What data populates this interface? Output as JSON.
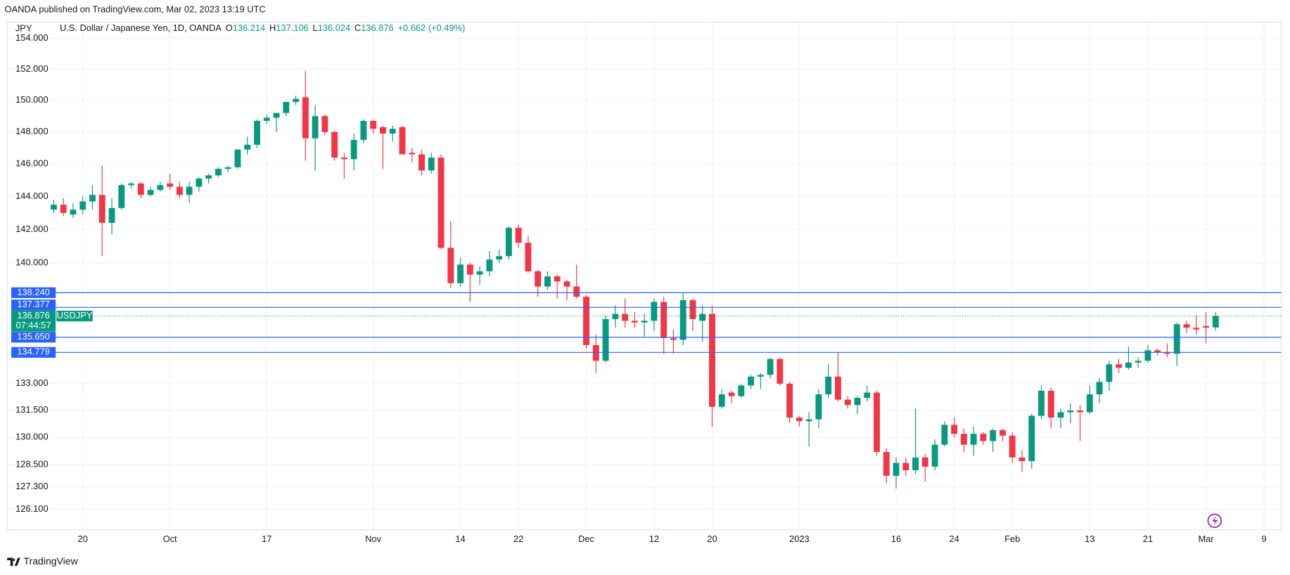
{
  "header": "OANDA published on TradingView.com, Mar 02, 2023 13:19 UTC",
  "footer_brand": "TradingView",
  "chart_data": {
    "type": "candlestick",
    "currency": "JPY",
    "title": "U.S. Dollar / Japanese Yen, 1D, OANDA",
    "ohlc_legend": [
      {
        "key": "O",
        "value": 136.214
      },
      {
        "key": "H",
        "value": 137.106
      },
      {
        "key": "L",
        "value": 136.024
      },
      {
        "key": "C",
        "value": 136.876
      }
    ],
    "change": "+0.662 (+0.49%)",
    "x": [
      "2022-09-15",
      "2022-09-16",
      "2022-09-19",
      "2022-09-20",
      "2022-09-21",
      "2022-09-22",
      "2022-09-23",
      "2022-09-26",
      "2022-09-27",
      "2022-09-28",
      "2022-09-29",
      "2022-09-30",
      "2022-10-03",
      "2022-10-04",
      "2022-10-05",
      "2022-10-06",
      "2022-10-07",
      "2022-10-10",
      "2022-10-11",
      "2022-10-12",
      "2022-10-13",
      "2022-10-14",
      "2022-10-17",
      "2022-10-18",
      "2022-10-19",
      "2022-10-20",
      "2022-10-21",
      "2022-10-24",
      "2022-10-25",
      "2022-10-26",
      "2022-10-27",
      "2022-10-28",
      "2022-10-31",
      "2022-11-01",
      "2022-11-02",
      "2022-11-03",
      "2022-11-04",
      "2022-11-07",
      "2022-11-08",
      "2022-11-09",
      "2022-11-10",
      "2022-11-11",
      "2022-11-14",
      "2022-11-15",
      "2022-11-16",
      "2022-11-17",
      "2022-11-18",
      "2022-11-21",
      "2022-11-22",
      "2022-11-23",
      "2022-11-24",
      "2022-11-25",
      "2022-11-28",
      "2022-11-29",
      "2022-11-30",
      "2022-12-01",
      "2022-12-02",
      "2022-12-05",
      "2022-12-06",
      "2022-12-07",
      "2022-12-08",
      "2022-12-09",
      "2022-12-12",
      "2022-12-13",
      "2022-12-14",
      "2022-12-15",
      "2022-12-16",
      "2022-12-19",
      "2022-12-20",
      "2022-12-21",
      "2022-12-22",
      "2022-12-23",
      "2022-12-26",
      "2022-12-27",
      "2022-12-28",
      "2022-12-29",
      "2022-12-30",
      "2023-01-02",
      "2023-01-03",
      "2023-01-04",
      "2023-01-05",
      "2023-01-06",
      "2023-01-09",
      "2023-01-10",
      "2023-01-11",
      "2023-01-12",
      "2023-01-13",
      "2023-01-16",
      "2023-01-17",
      "2023-01-18",
      "2023-01-19",
      "2023-01-20",
      "2023-01-23",
      "2023-01-24",
      "2023-01-25",
      "2023-01-26",
      "2023-01-27",
      "2023-01-30",
      "2023-01-31",
      "2023-02-01",
      "2023-02-02",
      "2023-02-03",
      "2023-02-06",
      "2023-02-07",
      "2023-02-08",
      "2023-02-09",
      "2023-02-10",
      "2023-02-13",
      "2023-02-14",
      "2023-02-15",
      "2023-02-16",
      "2023-02-17",
      "2023-02-20",
      "2023-02-21",
      "2023-02-22",
      "2023-02-23",
      "2023-02-24",
      "2023-02-27",
      "2023-02-28",
      "2023-03-01",
      "2023-03-02"
    ],
    "open": [
      143.2,
      143.5,
      142.9,
      143.2,
      143.7,
      144.1,
      142.4,
      143.3,
      144.7,
      144.8,
      144.1,
      144.4,
      144.8,
      144.6,
      144.1,
      144.6,
      145.1,
      145.3,
      145.7,
      145.8,
      146.9,
      147.2,
      148.7,
      148.9,
      149.2,
      149.9,
      150.2,
      147.6,
      149.0,
      148.0,
      146.4,
      146.3,
      147.5,
      148.7,
      148.3,
      147.9,
      148.3,
      146.7,
      146.6,
      145.6,
      146.4,
      140.9,
      138.8,
      139.9,
      139.3,
      139.5,
      140.2,
      140.4,
      142.1,
      141.2,
      139.5,
      138.6,
      139.2,
      138.9,
      138.6,
      138.0,
      135.2,
      134.3,
      136.7,
      137.0,
      136.6,
      136.5,
      136.6,
      137.7,
      135.6,
      135.5,
      137.8,
      136.6,
      137.0,
      131.7,
      132.5,
      132.3,
      132.9,
      133.4,
      133.5,
      134.4,
      133.0,
      131.1,
      130.9,
      131.0,
      132.4,
      133.4,
      132.1,
      131.8,
      132.2,
      132.5,
      129.2,
      127.9,
      128.6,
      128.2,
      128.9,
      128.4,
      129.6,
      130.7,
      130.2,
      129.6,
      130.2,
      129.8,
      130.4,
      130.1,
      128.9,
      128.7,
      131.2,
      132.6,
      131.1,
      131.4,
      131.5,
      131.4,
      132.4,
      133.1,
      134.1,
      133.9,
      134.2,
      134.3,
      134.9,
      134.8,
      134.7,
      136.4,
      136.2,
      136.3,
      136.214
    ],
    "high": [
      143.8,
      143.9,
      143.6,
      144.0,
      144.7,
      145.9,
      143.9,
      144.8,
      144.9,
      144.9,
      144.6,
      144.9,
      145.4,
      144.9,
      144.9,
      145.2,
      145.4,
      145.8,
      145.9,
      146.9,
      147.7,
      148.8,
      149.1,
      149.2,
      149.9,
      150.3,
      151.9,
      149.7,
      149.1,
      148.1,
      146.7,
      147.9,
      148.8,
      148.8,
      148.4,
      148.4,
      148.4,
      147.0,
      146.9,
      146.7,
      146.6,
      142.5,
      140.3,
      140.0,
      139.8,
      140.7,
      140.8,
      142.2,
      142.3,
      141.6,
      139.6,
      139.5,
      139.3,
      139.0,
      139.9,
      138.1,
      135.8,
      136.9,
      137.5,
      137.9,
      137.1,
      137.0,
      137.9,
      138.0,
      136.1,
      138.2,
      137.9,
      137.5,
      137.5,
      132.7,
      132.6,
      133.0,
      133.5,
      133.6,
      134.5,
      134.5,
      133.1,
      131.2,
      131.4,
      132.7,
      134.1,
      134.8,
      132.3,
      132.3,
      132.9,
      132.6,
      129.4,
      128.9,
      128.9,
      131.6,
      129.1,
      129.9,
      130.9,
      131.1,
      130.5,
      130.6,
      130.3,
      130.5,
      130.5,
      130.3,
      129.3,
      131.3,
      132.9,
      132.8,
      131.6,
      131.9,
      131.8,
      132.9,
      133.3,
      134.3,
      134.4,
      135.1,
      134.5,
      135.2,
      135.0,
      135.3,
      136.5,
      136.6,
      136.9,
      137.1,
      137.106
    ],
    "low": [
      143.0,
      142.8,
      142.7,
      142.9,
      143.2,
      140.4,
      141.7,
      143.2,
      144.5,
      143.9,
      144.0,
      144.3,
      144.4,
      143.9,
      143.6,
      144.3,
      144.8,
      145.2,
      145.5,
      145.7,
      146.6,
      147.0,
      148.5,
      148.0,
      149.0,
      149.7,
      146.2,
      145.6,
      147.8,
      146.2,
      145.1,
      145.6,
      147.3,
      147.9,
      145.7,
      147.4,
      146.6,
      146.1,
      145.3,
      145.4,
      140.8,
      138.5,
      138.6,
      137.7,
      138.7,
      139.2,
      140.0,
      140.2,
      140.9,
      139.4,
      138.0,
      138.4,
      137.9,
      137.8,
      137.9,
      135.0,
      133.6,
      134.2,
      136.2,
      136.2,
      136.2,
      135.7,
      136.0,
      134.7,
      134.7,
      135.2,
      136.0,
      135.4,
      130.6,
      131.6,
      131.9,
      132.2,
      132.7,
      132.7,
      133.3,
      132.9,
      130.8,
      130.6,
      129.5,
      130.5,
      132.2,
      132.0,
      131.6,
      131.3,
      132.0,
      129.0,
      127.5,
      127.2,
      127.9,
      128.0,
      127.6,
      128.2,
      129.5,
      130.0,
      129.2,
      129.0,
      129.6,
      129.2,
      129.8,
      128.6,
      128.1,
      128.3,
      131.0,
      130.5,
      130.5,
      130.8,
      129.8,
      131.3,
      131.9,
      132.6,
      133.6,
      133.8,
      133.9,
      134.2,
      134.6,
      134.5,
      134.0,
      135.9,
      135.8,
      135.3,
      136.024
    ],
    "close": [
      143.5,
      143.0,
      143.2,
      143.7,
      144.1,
      142.4,
      143.3,
      144.7,
      144.8,
      144.1,
      144.4,
      144.7,
      144.6,
      144.1,
      144.6,
      145.1,
      145.3,
      145.7,
      145.8,
      146.9,
      147.2,
      148.7,
      148.9,
      149.2,
      149.9,
      150.1,
      147.6,
      149.0,
      148.0,
      146.4,
      146.3,
      147.5,
      148.7,
      148.2,
      147.9,
      148.2,
      146.6,
      146.6,
      145.6,
      146.4,
      140.9,
      138.8,
      139.9,
      139.3,
      139.5,
      140.2,
      140.4,
      142.1,
      141.2,
      139.5,
      138.6,
      139.2,
      138.9,
      138.6,
      138.0,
      135.2,
      134.3,
      136.7,
      137.0,
      136.6,
      136.5,
      136.6,
      137.7,
      135.6,
      135.5,
      137.8,
      136.7,
      137.0,
      131.7,
      132.4,
      132.3,
      132.9,
      133.4,
      133.5,
      134.4,
      133.0,
      131.1,
      130.9,
      131.0,
      132.4,
      133.4,
      132.1,
      131.8,
      132.2,
      132.5,
      129.2,
      127.9,
      128.6,
      128.2,
      128.9,
      128.4,
      129.6,
      130.7,
      130.2,
      129.6,
      130.2,
      129.8,
      130.4,
      130.1,
      128.9,
      128.7,
      131.2,
      132.6,
      131.1,
      131.4,
      131.5,
      131.4,
      132.4,
      133.1,
      134.1,
      133.9,
      134.2,
      134.3,
      134.9,
      134.8,
      134.7,
      136.4,
      136.2,
      136.1,
      136.2,
      136.876
    ],
    "up_color": "#089981",
    "down_color": "#f23645",
    "log_scale": true,
    "grid": true,
    "ylim": [
      125.0,
      154.9
    ],
    "yticks": [
      {
        "value": 154,
        "label": "154.000"
      },
      {
        "value": 152,
        "label": "152.000"
      },
      {
        "value": 150,
        "label": "150.000"
      },
      {
        "value": 148,
        "label": "148.000"
      },
      {
        "value": 146,
        "label": "146.000"
      },
      {
        "value": 144,
        "label": "144.000"
      },
      {
        "value": 142,
        "label": "142.000"
      },
      {
        "value": 140,
        "label": "140.000"
      },
      {
        "value": 133,
        "label": "133.000"
      },
      {
        "value": 131.5,
        "label": "131.500"
      },
      {
        "value": 130,
        "label": "130.000"
      },
      {
        "value": 128.5,
        "label": "128.500"
      },
      {
        "value": 127.3,
        "label": "127.300"
      },
      {
        "value": 126.1,
        "label": "126.100"
      }
    ],
    "xticks": [
      {
        "value": "2022-09-20",
        "label": "20"
      },
      {
        "value": "2022-10-03",
        "label": "Oct"
      },
      {
        "value": "2022-10-17",
        "label": "17"
      },
      {
        "value": "2022-11-01",
        "label": "Nov"
      },
      {
        "value": "2022-11-14",
        "label": "14"
      },
      {
        "value": "2022-11-22",
        "label": "22"
      },
      {
        "value": "2022-12-01",
        "label": "Dec"
      },
      {
        "value": "2022-12-12",
        "label": "12"
      },
      {
        "value": "2022-12-20",
        "label": "20"
      },
      {
        "value": "2023-01-02",
        "label": "2023"
      },
      {
        "value": "2023-01-16",
        "label": "16"
      },
      {
        "value": "2023-01-24",
        "label": "24"
      },
      {
        "value": "2023-02-01",
        "label": "Feb"
      },
      {
        "value": "2023-02-13",
        "label": "13"
      },
      {
        "value": "2023-02-21",
        "label": "21"
      },
      {
        "value": "2023-03-01",
        "label": "Mar"
      },
      {
        "value": "2023-03-09",
        "label": "9"
      }
    ],
    "price_line_color": "#2962ff",
    "price_lines": [
      {
        "value": 138.24,
        "label": "138.240"
      },
      {
        "value": 137.377,
        "label": "137.377"
      },
      {
        "value": 135.65,
        "label": "135.650"
      },
      {
        "value": 134.779,
        "label": "134.779"
      }
    ],
    "last_price": {
      "value": 136.876,
      "label": "136.876",
      "countdown": "07:44:57",
      "symbol": "USDJPY"
    }
  }
}
